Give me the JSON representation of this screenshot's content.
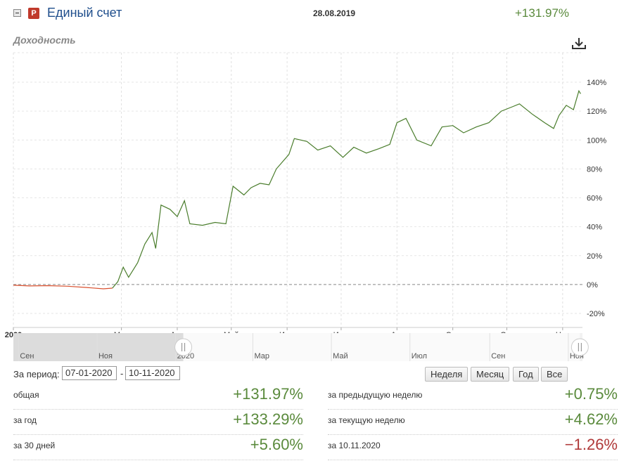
{
  "header": {
    "badge": "Р",
    "account_name": "Единый счет",
    "date": "28.08.2019",
    "total": "+131.97%"
  },
  "chart_title": "Доходность",
  "icons": {
    "collapse": "minus-box-icon",
    "download": "download-icon"
  },
  "colors": {
    "positive": "#5a8a3c",
    "negative": "#b03a3a",
    "line_pos": "#4a7d2c",
    "line_neg": "#d9502e"
  },
  "chart_data": {
    "type": "line",
    "title": "Доходность",
    "y_unit": "%",
    "ylim": [
      -20,
      140
    ],
    "yticks": [
      "140%",
      "120%",
      "100%",
      "80%",
      "60%",
      "40%",
      "20%",
      "0%",
      "-20%"
    ],
    "ytick_values": [
      140,
      120,
      100,
      80,
      60,
      40,
      20,
      0,
      -20
    ],
    "x_range": [
      "2020-01-01",
      "2020-11-12"
    ],
    "xticks": [
      {
        "label": "2020",
        "date": "2020-01-01"
      },
      {
        "label": "Мар",
        "date": "2020-03-01"
      },
      {
        "label": "Апр",
        "date": "2020-04-01"
      },
      {
        "label": "Май",
        "date": "2020-05-01"
      },
      {
        "label": "Июн",
        "date": "2020-06-01"
      },
      {
        "label": "Июл",
        "date": "2020-07-01"
      },
      {
        "label": "Авг",
        "date": "2020-08-01"
      },
      {
        "label": "Сен",
        "date": "2020-09-01"
      },
      {
        "label": "Окт",
        "date": "2020-10-01"
      },
      {
        "label": "Ноя",
        "date": "2020-11-01"
      }
    ],
    "grid": true,
    "series": [
      {
        "values": [
          [
            "2020-01-01",
            -0.5
          ],
          [
            "2020-01-10",
            -1
          ],
          [
            "2020-01-20",
            -0.8
          ],
          [
            "2020-01-31",
            -1.2
          ],
          [
            "2020-02-10",
            -2
          ],
          [
            "2020-02-20",
            -3
          ],
          [
            "2020-02-25",
            -2.5
          ],
          [
            "2020-02-28",
            2
          ],
          [
            "2020-03-02",
            12
          ],
          [
            "2020-03-05",
            5
          ],
          [
            "2020-03-10",
            15
          ],
          [
            "2020-03-14",
            28
          ],
          [
            "2020-03-18",
            36
          ],
          [
            "2020-03-20",
            25
          ],
          [
            "2020-03-23",
            55
          ],
          [
            "2020-03-28",
            52
          ],
          [
            "2020-04-01",
            47
          ],
          [
            "2020-04-05",
            58
          ],
          [
            "2020-04-08",
            42
          ],
          [
            "2020-04-15",
            41
          ],
          [
            "2020-04-22",
            43
          ],
          [
            "2020-04-28",
            42
          ],
          [
            "2020-05-02",
            68
          ],
          [
            "2020-05-08",
            62
          ],
          [
            "2020-05-12",
            67
          ],
          [
            "2020-05-17",
            70
          ],
          [
            "2020-05-22",
            69
          ],
          [
            "2020-05-26",
            80
          ],
          [
            "2020-06-02",
            90
          ],
          [
            "2020-06-05",
            101
          ],
          [
            "2020-06-12",
            99
          ],
          [
            "2020-06-18",
            93
          ],
          [
            "2020-06-25",
            96
          ],
          [
            "2020-07-02",
            88
          ],
          [
            "2020-07-08",
            95
          ],
          [
            "2020-07-15",
            91
          ],
          [
            "2020-07-22",
            94
          ],
          [
            "2020-07-28",
            97
          ],
          [
            "2020-08-01",
            112
          ],
          [
            "2020-08-06",
            115
          ],
          [
            "2020-08-12",
            100
          ],
          [
            "2020-08-20",
            96
          ],
          [
            "2020-08-26",
            109
          ],
          [
            "2020-09-01",
            110
          ],
          [
            "2020-09-07",
            105
          ],
          [
            "2020-09-14",
            109
          ],
          [
            "2020-09-21",
            112
          ],
          [
            "2020-09-28",
            120
          ],
          [
            "2020-10-04",
            123
          ],
          [
            "2020-10-08",
            125
          ],
          [
            "2020-10-15",
            118
          ],
          [
            "2020-10-22",
            112
          ],
          [
            "2020-10-27",
            108
          ],
          [
            "2020-10-30",
            117
          ],
          [
            "2020-11-03",
            124
          ],
          [
            "2020-11-07",
            121
          ],
          [
            "2020-11-10",
            134
          ],
          [
            "2020-11-11",
            132
          ]
        ]
      }
    ]
  },
  "navigator": {
    "ticks": [
      {
        "label": "Сен",
        "date": "2019-09-01"
      },
      {
        "label": "Ноя",
        "date": "2019-11-01"
      },
      {
        "label": "2020",
        "date": "2020-01-01"
      },
      {
        "label": "Мар",
        "date": "2020-03-01"
      },
      {
        "label": "Май",
        "date": "2020-05-01"
      },
      {
        "label": "Июл",
        "date": "2020-07-01"
      },
      {
        "label": "Сен",
        "date": "2020-09-01"
      },
      {
        "label": "Ноя",
        "date": "2020-11-01"
      }
    ],
    "range": [
      "2019-08-28",
      "2020-11-12"
    ],
    "selected": [
      "2020-01-07",
      "2020-11-10"
    ]
  },
  "controls": {
    "period_label": "За период:",
    "date_from": "07-01-2020",
    "date_to": "10-11-2020",
    "separator": "-",
    "range_buttons": [
      "Неделя",
      "Месяц",
      "Год",
      "Все"
    ]
  },
  "stats": {
    "left": [
      {
        "label": "общая",
        "value": "+131.97%",
        "sign": "pos"
      },
      {
        "label": "за год",
        "value": "+133.29%",
        "sign": "pos"
      },
      {
        "label": "за 30 дней",
        "value": "+5.60%",
        "sign": "pos"
      }
    ],
    "right": [
      {
        "label": "за предыдущую неделю",
        "value": "+0.75%",
        "sign": "pos"
      },
      {
        "label": "за текущую неделю",
        "value": "+4.62%",
        "sign": "pos"
      },
      {
        "label": "за 10.11.2020",
        "value": "−1.26%",
        "sign": "neg"
      }
    ]
  }
}
